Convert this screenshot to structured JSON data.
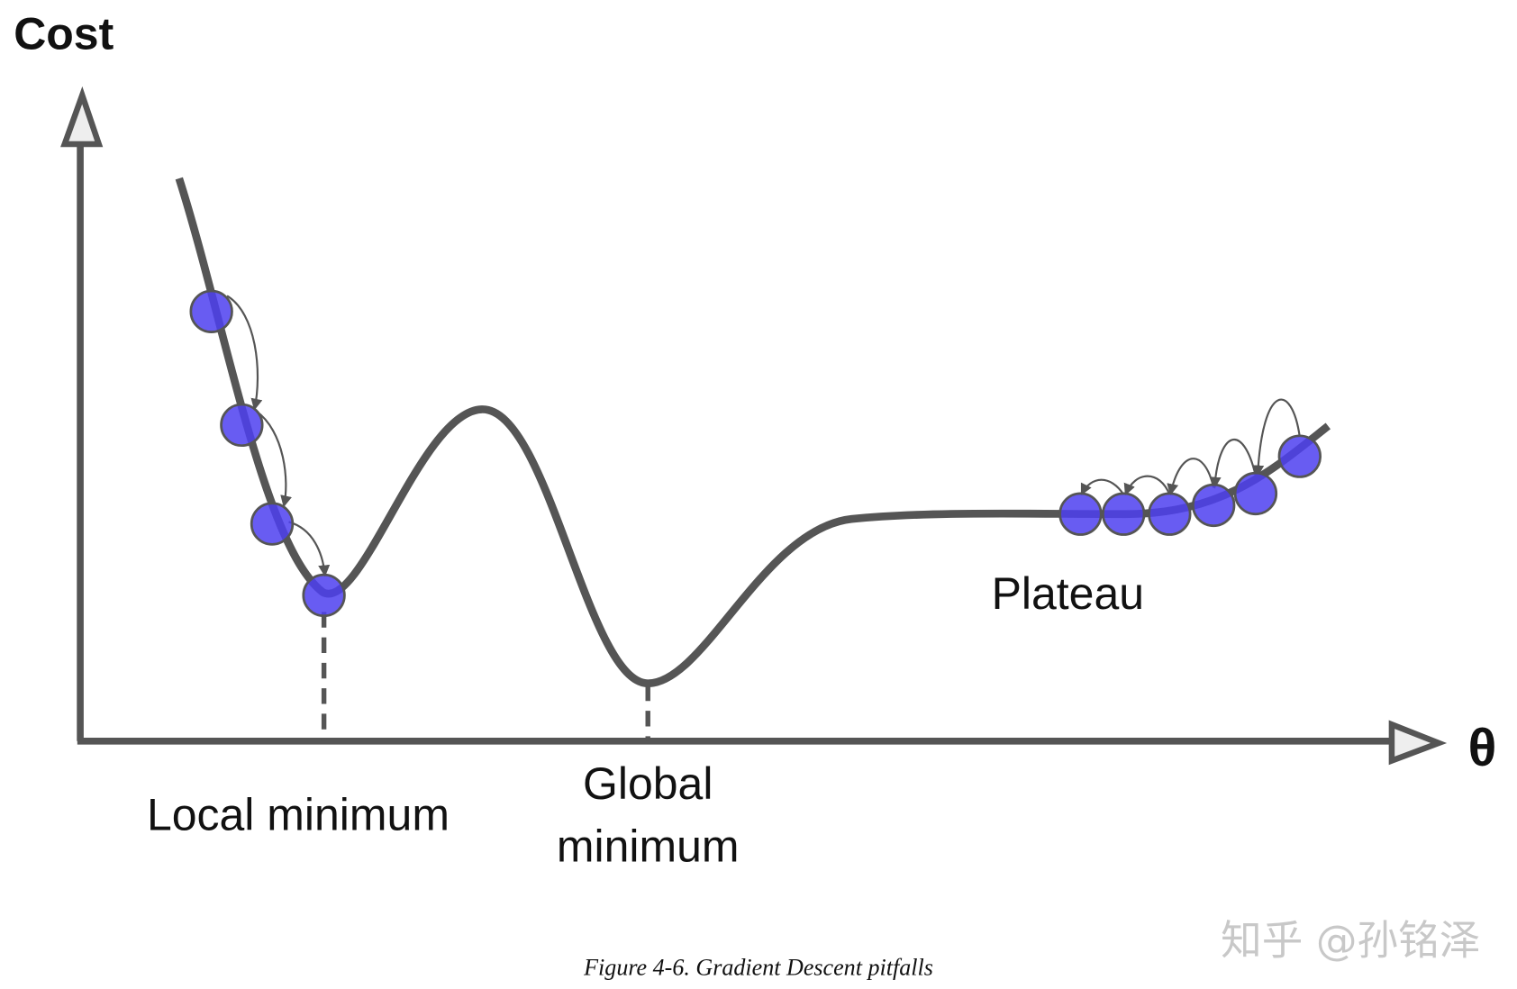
{
  "axes": {
    "y_label": "Cost",
    "x_label": "θ"
  },
  "annotations": {
    "local_minimum": "Local minimum",
    "global_minimum": [
      "Global",
      "minimum"
    ],
    "plateau": "Plateau"
  },
  "caption": "Figure 4-6. Gradient Descent pitfalls",
  "watermark": "知乎 @孙铭泽"
}
